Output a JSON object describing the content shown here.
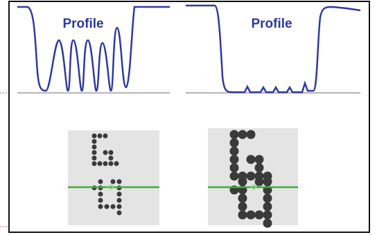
{
  "panels": [
    {
      "title": "Profile"
    },
    {
      "title": "Profile"
    }
  ]
}
